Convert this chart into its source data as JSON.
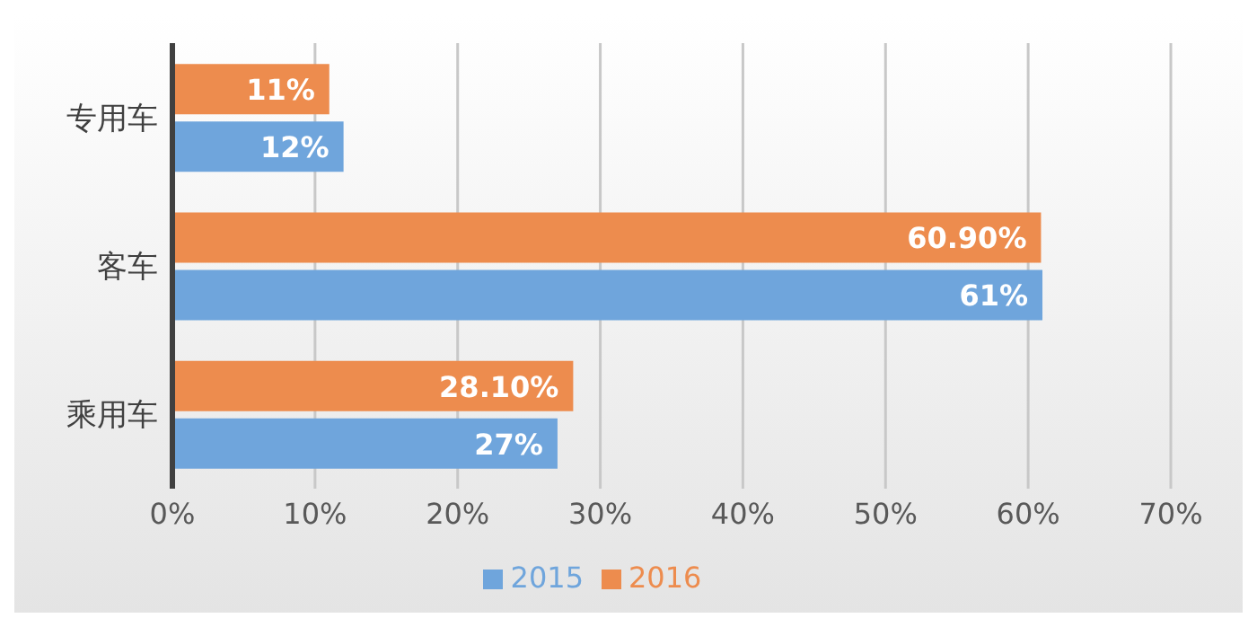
{
  "chart_data": {
    "type": "bar",
    "orientation": "horizontal",
    "categories": [
      "专用车",
      "客车",
      "乘用车"
    ],
    "series": [
      {
        "name": "2016",
        "color": "#ed8c4e",
        "values": [
          11,
          60.9,
          28.1
        ],
        "value_labels": [
          "11%",
          "60.90%",
          "28.10%"
        ]
      },
      {
        "name": "2015",
        "color": "#6fa5dc",
        "values": [
          12,
          61,
          27
        ],
        "value_labels": [
          "12%",
          "61%",
          "27%"
        ]
      }
    ],
    "xlim": [
      0,
      70
    ],
    "xticks": [
      {
        "value": 0,
        "label": "0%"
      },
      {
        "value": 10,
        "label": "10%"
      },
      {
        "value": 20,
        "label": "20%"
      },
      {
        "value": 30,
        "label": "30%"
      },
      {
        "value": 40,
        "label": "40%"
      },
      {
        "value": 50,
        "label": "50%"
      },
      {
        "value": 60,
        "label": "60%"
      },
      {
        "value": 70,
        "label": "70%"
      }
    ],
    "grid": "x",
    "legend": "bottom"
  }
}
